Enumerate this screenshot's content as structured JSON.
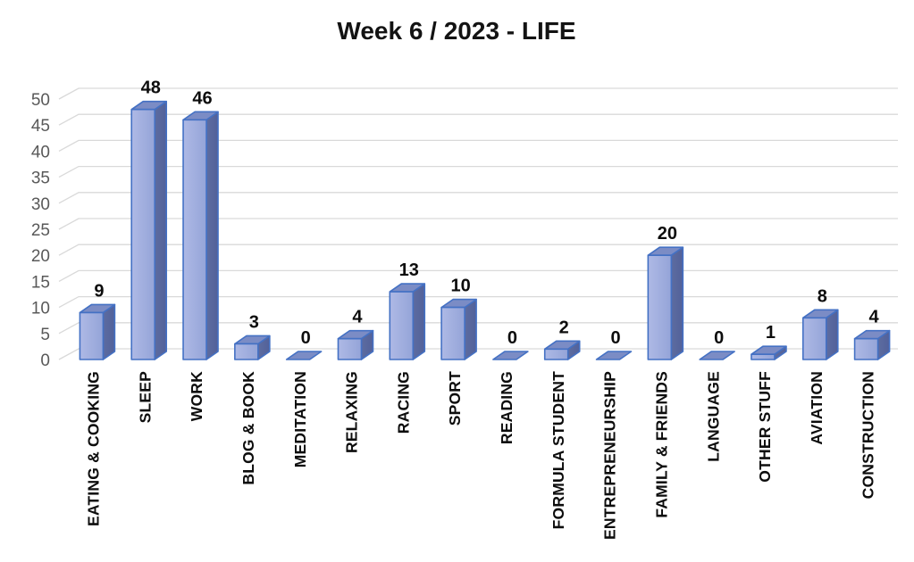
{
  "chart_data": {
    "type": "bar",
    "title": "Week 6 / 2023 - LIFE",
    "xlabel": "",
    "ylabel": "",
    "categories": [
      "EATING & COOKING",
      "SLEEP",
      "WORK",
      "BLOG & BOOK",
      "MEDITATION",
      "RELAXING",
      "RACING",
      "SPORT",
      "READING",
      "FORMULA STUDENT",
      "ENTREPRENEURSHIP",
      "FAMILY & FRIENDS",
      "LANGUAGE",
      "OTHER STUFF",
      "AVIATION",
      "CONSTRUCTION"
    ],
    "values": [
      9,
      48,
      46,
      3,
      0,
      4,
      13,
      10,
      0,
      2,
      0,
      20,
      0,
      1,
      8,
      4
    ],
    "data_labels_shown": true,
    "ylim": [
      0,
      50
    ],
    "ytick_step": 5,
    "yticks": [
      0,
      5,
      10,
      15,
      20,
      25,
      30,
      35,
      40,
      45,
      50
    ],
    "grid": true,
    "legend": false,
    "effect": "3d",
    "colors": {
      "bar_front": "#94a4d8",
      "bar_front_light": "#aeb9e5",
      "bar_side": "#5d6ca0",
      "bar_side_dark": "#52619a",
      "bar_top": "#7b8cc5",
      "bar_border": "#4471c4",
      "gridline": "#d9d9d9",
      "ytick_label": "#595959",
      "value_label": "#0d0d0d",
      "category_label": "#0d0d0d",
      "title": "#131313",
      "background": "#ffffff"
    }
  }
}
